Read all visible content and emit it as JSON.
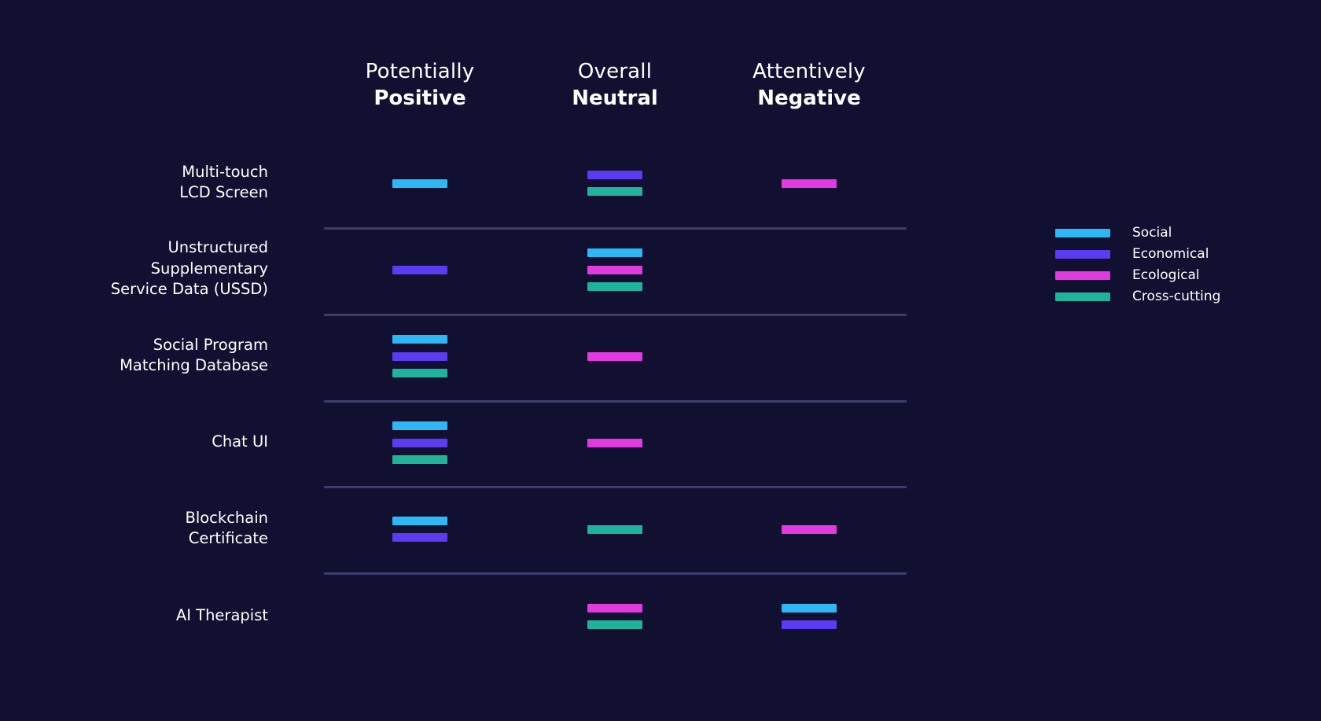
{
  "columns": [
    {
      "line1": "Potentially",
      "line2": "Positive"
    },
    {
      "line1": "Overall",
      "line2": "Neutral"
    },
    {
      "line1": "Attentively",
      "line2": "Negative"
    }
  ],
  "legend": [
    {
      "key": "social",
      "label": "Social",
      "color": "#2db7f5"
    },
    {
      "key": "economical",
      "label": "Economical",
      "color": "#5b3cf0"
    },
    {
      "key": "ecological",
      "label": "Ecological",
      "color": "#e03ae0"
    },
    {
      "key": "cross",
      "label": "Cross-cutting",
      "color": "#1fb39c"
    }
  ],
  "rows": [
    {
      "label": "Multi-touch\nLCD Screen",
      "cells": [
        [
          "social"
        ],
        [
          "economical",
          "cross"
        ],
        [
          "ecological"
        ]
      ]
    },
    {
      "label": "Unstructured\nSupplementary\nService Data (USSD)",
      "cells": [
        [
          "economical"
        ],
        [
          "social",
          "ecological",
          "cross"
        ],
        []
      ]
    },
    {
      "label": "Social Program\nMatching Database",
      "cells": [
        [
          "social",
          "economical",
          "cross"
        ],
        [
          "ecological"
        ],
        []
      ]
    },
    {
      "label": "Chat UI",
      "cells": [
        [
          "social",
          "economical",
          "cross"
        ],
        [
          "ecological"
        ],
        []
      ]
    },
    {
      "label": "Blockchain\nCertificate",
      "cells": [
        [
          "social",
          "economical"
        ],
        [
          "cross"
        ],
        [
          "ecological"
        ]
      ]
    },
    {
      "label": "AI Therapist",
      "cells": [
        [],
        [
          "ecological",
          "cross"
        ],
        [
          "social",
          "economical"
        ]
      ]
    }
  ]
}
